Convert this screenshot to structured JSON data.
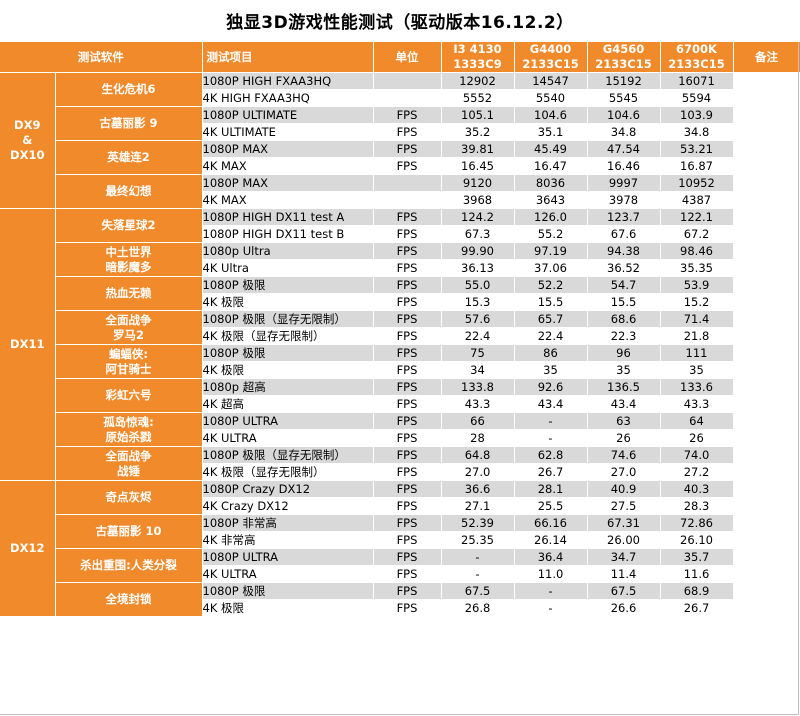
{
  "title": "独显3D游戏性能测试（驱动版本16.12.2）",
  "headers": {
    "software": "测试软件",
    "item": "测试项目",
    "unit": "单位",
    "cpu1_a": "I3 4130",
    "cpu1_b": "1333C9",
    "cpu2_a": "G4400",
    "cpu2_b": "2133C15",
    "cpu3_a": "G4560",
    "cpu3_b": "2133C15",
    "cpu4_a": "6700K",
    "cpu4_b": "2133C15",
    "note": "备注"
  },
  "groups": [
    {
      "dx": "DX9\n&\nDX10",
      "games": [
        {
          "name": "生化危机6",
          "rows": [
            {
              "test": "1080P HIGH FXAA3HQ",
              "unit": "",
              "v": [
                "12902",
                "14547",
                "15192",
                "16071"
              ]
            },
            {
              "test": "4K HIGH FXAA3HQ",
              "unit": "",
              "v": [
                "5552",
                "5540",
                "5545",
                "5594"
              ]
            }
          ]
        },
        {
          "name": "古墓丽影 9",
          "rows": [
            {
              "test": "1080P ULTIMATE",
              "unit": "FPS",
              "v": [
                "105.1",
                "104.6",
                "104.6",
                "103.9"
              ]
            },
            {
              "test": "4K ULTIMATE",
              "unit": "FPS",
              "v": [
                "35.2",
                "35.1",
                "34.8",
                "34.8"
              ]
            }
          ]
        },
        {
          "name": "英雄连2",
          "rows": [
            {
              "test": "1080P MAX",
              "unit": "FPS",
              "v": [
                "39.81",
                "45.49",
                "47.54",
                "53.21"
              ]
            },
            {
              "test": "4K MAX",
              "unit": "FPS",
              "v": [
                "16.45",
                "16.47",
                "16.46",
                "16.87"
              ]
            }
          ]
        },
        {
          "name": "最终幻想",
          "rows": [
            {
              "test": "1080P MAX",
              "unit": "",
              "v": [
                "9120",
                "8036",
                "9997",
                "10952"
              ]
            },
            {
              "test": "4K MAX",
              "unit": "",
              "v": [
                "3968",
                "3643",
                "3978",
                "4387"
              ]
            }
          ]
        }
      ]
    },
    {
      "dx": "DX11",
      "games": [
        {
          "name": "失落星球2",
          "rows": [
            {
              "test": "1080P HIGH DX11 test A",
              "unit": "FPS",
              "v": [
                "124.2",
                "126.0",
                "123.7",
                "122.1"
              ]
            },
            {
              "test": "1080P HIGH DX11 test B",
              "unit": "FPS",
              "v": [
                "67.3",
                "55.2",
                "67.6",
                "67.2"
              ]
            }
          ]
        },
        {
          "name": "中土世界\n暗影魔多",
          "rows": [
            {
              "test": "1080p Ultra",
              "unit": "FPS",
              "v": [
                "99.90",
                "97.19",
                "94.38",
                "98.46"
              ]
            },
            {
              "test": "4K Ultra",
              "unit": "FPS",
              "v": [
                "36.13",
                "37.06",
                "36.52",
                "35.35"
              ]
            }
          ]
        },
        {
          "name": "热血无赖",
          "rows": [
            {
              "test": "1080P 极限",
              "unit": "FPS",
              "v": [
                "55.0",
                "52.2",
                "54.7",
                "53.9"
              ]
            },
            {
              "test": "4K 极限",
              "unit": "FPS",
              "v": [
                "15.3",
                "15.5",
                "15.5",
                "15.2"
              ]
            }
          ]
        },
        {
          "name": "全面战争\n罗马2",
          "rows": [
            {
              "test": "1080P 极限（显存无限制）",
              "unit": "FPS",
              "v": [
                "57.6",
                "65.7",
                "68.6",
                "71.4"
              ]
            },
            {
              "test": "4K 极限（显存无限制）",
              "unit": "FPS",
              "v": [
                "22.4",
                "22.4",
                "22.3",
                "21.8"
              ]
            }
          ]
        },
        {
          "name": "蝙蝠侠:\n阿甘骑士",
          "rows": [
            {
              "test": "1080P 极限",
              "unit": "FPS",
              "v": [
                "75",
                "86",
                "96",
                "111"
              ]
            },
            {
              "test": "4K 极限",
              "unit": "FPS",
              "v": [
                "34",
                "35",
                "35",
                "35"
              ]
            }
          ]
        },
        {
          "name": "彩虹六号",
          "rows": [
            {
              "test": "1080p 超高",
              "unit": "FPS",
              "v": [
                "133.8",
                "92.6",
                "136.5",
                "133.6"
              ]
            },
            {
              "test": "4K 超高",
              "unit": "FPS",
              "v": [
                "43.3",
                "43.4",
                "43.4",
                "43.3"
              ]
            }
          ]
        },
        {
          "name": "孤岛惊魂:\n原始杀戮",
          "rows": [
            {
              "test": "1080P ULTRA",
              "unit": "FPS",
              "v": [
                "66",
                "-",
                "63",
                "64"
              ]
            },
            {
              "test": "4K ULTRA",
              "unit": "FPS",
              "v": [
                "28",
                "-",
                "26",
                "26"
              ]
            }
          ]
        },
        {
          "name": "全面战争\n战锤",
          "rows": [
            {
              "test": "1080P 极限（显存无限制）",
              "unit": "FPS",
              "v": [
                "64.8",
                "62.8",
                "74.6",
                "74.0"
              ]
            },
            {
              "test": "4K 极限（显存无限制）",
              "unit": "FPS",
              "v": [
                "27.0",
                "26.7",
                "27.0",
                "27.2"
              ]
            }
          ]
        }
      ]
    },
    {
      "dx": "DX12",
      "games": [
        {
          "name": "奇点灰烬",
          "rows": [
            {
              "test": "1080P Crazy DX12",
              "unit": "FPS",
              "v": [
                "36.6",
                "28.1",
                "40.9",
                "40.3"
              ]
            },
            {
              "test": "4K Crazy DX12",
              "unit": "FPS",
              "v": [
                "27.1",
                "25.5",
                "27.5",
                "28.3"
              ]
            }
          ]
        },
        {
          "name": "古墓丽影 10",
          "rows": [
            {
              "test": "1080P 非常高",
              "unit": "FPS",
              "v": [
                "52.39",
                "66.16",
                "67.31",
                "72.86"
              ]
            },
            {
              "test": "4K 非常高",
              "unit": "FPS",
              "v": [
                "25.35",
                "26.14",
                "26.00",
                "26.10"
              ]
            }
          ]
        },
        {
          "name": "杀出重围:人类分裂",
          "rows": [
            {
              "test": "1080P ULTRA",
              "unit": "FPS",
              "v": [
                "-",
                "36.4",
                "34.7",
                "35.7"
              ]
            },
            {
              "test": "4K ULTRA",
              "unit": "FPS",
              "v": [
                "-",
                "11.0",
                "11.4",
                "11.6"
              ]
            }
          ]
        },
        {
          "name": "全境封锁",
          "rows": [
            {
              "test": "1080P 极限",
              "unit": "FPS",
              "v": [
                "67.5",
                "-",
                "67.5",
                "68.9"
              ]
            },
            {
              "test": "4K 极限",
              "unit": "FPS",
              "v": [
                "26.8",
                "-",
                "26.6",
                "26.7"
              ]
            }
          ]
        }
      ]
    }
  ]
}
